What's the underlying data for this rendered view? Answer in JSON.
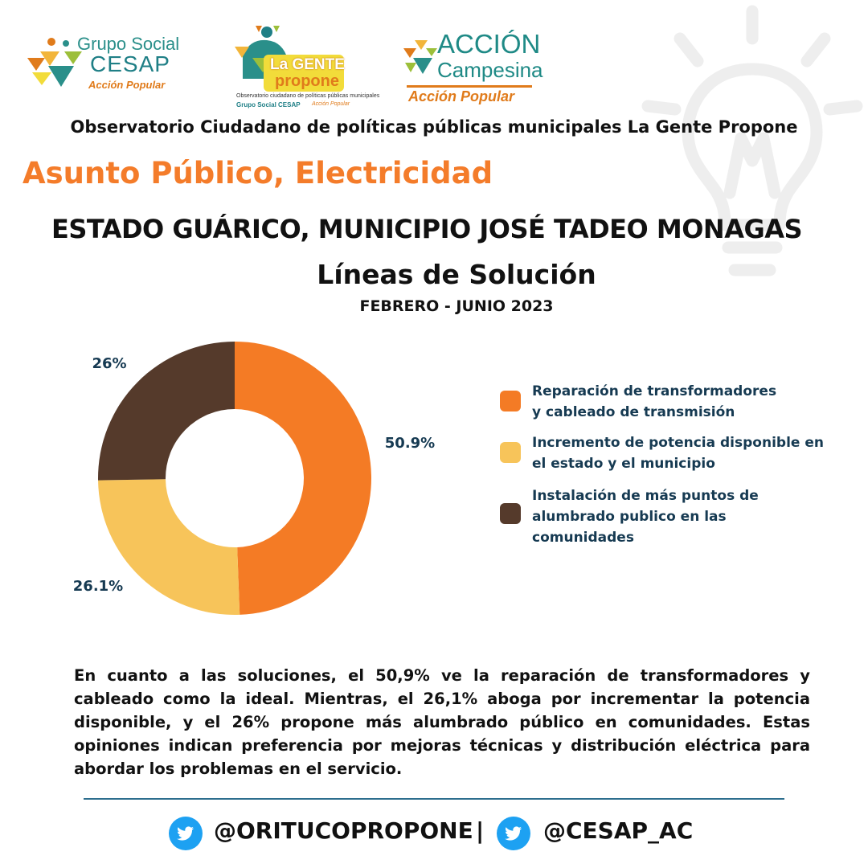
{
  "logos": {
    "cesap": {
      "line1": "Grupo Social",
      "line2": "CESAP",
      "line3": "Acción Popular"
    },
    "gente": {
      "line1": "La GENTE",
      "line2": "propone",
      "line3": "Observatorio ciudadano de políticas públicas municipales",
      "line4": "Grupo Social CESAP",
      "line5": "Acción Popular"
    },
    "accion": {
      "line1": "ACCIÓN",
      "line2": "Campesina",
      "line3": "Acción Popular"
    }
  },
  "header": {
    "observatorio": "Observatorio Ciudadano de políticas públicas municipales La Gente Propone",
    "asunto": "Asunto Público, Electricidad",
    "estado": "ESTADO GUÁRICO, MUNICIPIO JOSÉ TADEO MONAGAS",
    "subtitle": "Líneas de Solución",
    "period": "FEBRERO - JUNIO 2023"
  },
  "chart_data": {
    "type": "pie",
    "donut": true,
    "categories": [
      "Reparación de transformadores\ny cableado de transmisión",
      "Incremento de potencia disponible en\nel estado y el municipio",
      "Instalación de más puntos de\nalumbrado publico en las\ncomunidades"
    ],
    "values": [
      50.9,
      26.1,
      26
    ],
    "labels": [
      "50.9%",
      "26.1%",
      "26%"
    ],
    "colors": [
      "#f47b25",
      "#f7c45a",
      "#553a2b"
    ],
    "legend_position": "right"
  },
  "legend": {
    "items": [
      {
        "text": "Reparación de transformadores\ny cableado de transmisión",
        "color": "#f47b25"
      },
      {
        "text": "Incremento de potencia disponible en\nel estado y el municipio",
        "color": "#f7c45a"
      },
      {
        "text": "Instalación de más puntos de\nalumbrado publico en las\ncomunidades",
        "color": "#553a2b"
      }
    ]
  },
  "summary": "En cuanto a las soluciones, el 50,9% ve la reparación de transformadores y cableado como la ideal. Mientras, el 26,1% aboga por incrementar la potencia disponible, y el 26% propone más alumbrado público en comunidades. Estas opiniones indican preferencia por mejoras técnicas y distribución eléctrica para abordar los problemas en el servicio.",
  "footer": {
    "handle1": "@ORITUCOPROPONE",
    "separator": "|",
    "handle2": "@CESAP_AC",
    "icon": "twitter-icon",
    "icon_color": "#1da1f2"
  },
  "colors": {
    "accent": "#f47c2a",
    "legend_text": "#163a52",
    "divider": "#2d6e8e"
  }
}
